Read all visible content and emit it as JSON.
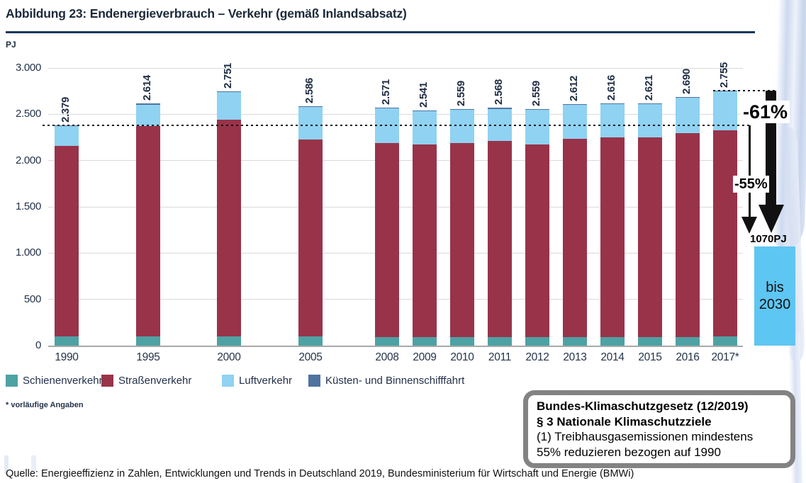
{
  "chart_data": {
    "type": "bar",
    "stacked": true,
    "title": "Abbildung 23: Endenergieverbrauch – Verkehr (gemäß Inlandsabsatz)",
    "ylabel": "PJ",
    "ylim": [
      0,
      3000
    ],
    "grid": true,
    "legend_position": "bottom",
    "yticks": [
      {
        "value": 0,
        "label": "0"
      },
      {
        "value": 500,
        "label": "500"
      },
      {
        "value": 1000,
        "label": "1.000"
      },
      {
        "value": 1500,
        "label": "1.500"
      },
      {
        "value": 2000,
        "label": "2.000"
      },
      {
        "value": 2500,
        "label": "2.500"
      },
      {
        "value": 3000,
        "label": "3.000"
      }
    ],
    "categories": [
      "1990",
      "1995",
      "2000",
      "2005",
      "2008",
      "2009",
      "2010",
      "2011",
      "2012",
      "2013",
      "2014",
      "2015",
      "2016",
      "2017*"
    ],
    "totals": [
      2379,
      2614,
      2751,
      2586,
      2571,
      2541,
      2559,
      2568,
      2559,
      2612,
      2616,
      2621,
      2690,
      2755
    ],
    "total_labels": [
      "2.379",
      "2.614",
      "2.751",
      "2.586",
      "2.571",
      "2.541",
      "2.559",
      "2.568",
      "2.559",
      "2.612",
      "2.616",
      "2.621",
      "2.690",
      "2.755"
    ],
    "series": [
      {
        "name": "Schienenverkehr",
        "color": "#4da2a4",
        "values": [
          100,
          100,
          100,
          100,
          95,
          90,
          95,
          95,
          90,
          95,
          95,
          95,
          95,
          100
        ]
      },
      {
        "name": "Straßenverkehr",
        "color": "#993349",
        "values": [
          2060,
          2270,
          2340,
          2130,
          2095,
          2080,
          2095,
          2115,
          2080,
          2140,
          2155,
          2155,
          2200,
          2230
        ]
      },
      {
        "name": "Luftverkehr",
        "color": "#8fd2f2",
        "values": [
          209,
          234,
          301,
          346,
          371,
          361,
          359,
          348,
          379,
          367,
          356,
          361,
          385,
          415
        ]
      },
      {
        "name": "Küsten- und Binnenschifffahrt",
        "color": "#4f74a0",
        "values": [
          10,
          10,
          10,
          10,
          10,
          10,
          10,
          10,
          10,
          10,
          10,
          10,
          10,
          10
        ]
      }
    ],
    "reference_lines": [
      {
        "name": "1990-level",
        "value": 2379
      },
      {
        "name": "2017-level",
        "value": 2755
      }
    ],
    "target": {
      "value": 1070,
      "label": "1070PJ",
      "bar_label": "bis 2030",
      "color": "#5ec6f3"
    }
  },
  "annotations": {
    "pct_vs_2017": "-61%",
    "pct_vs_1990": "-55%"
  },
  "law_box": {
    "line1": "Bundes-Klimaschutzgesetz (12/2019)",
    "line2": "§ 3 Nationale Klimaschutzziele",
    "line3": "(1) Treibhausgasemissionen mindestens",
    "line4": "55% reduzieren bezogen auf 1990"
  },
  "footnote": "* vorläufige Angaben",
  "source": "Quelle: Energieeffizienz in Zahlen, Entwicklungen und Trends in Deutschland 2019, Bundesministerium für Wirtschaft und Energie (BMWi)"
}
